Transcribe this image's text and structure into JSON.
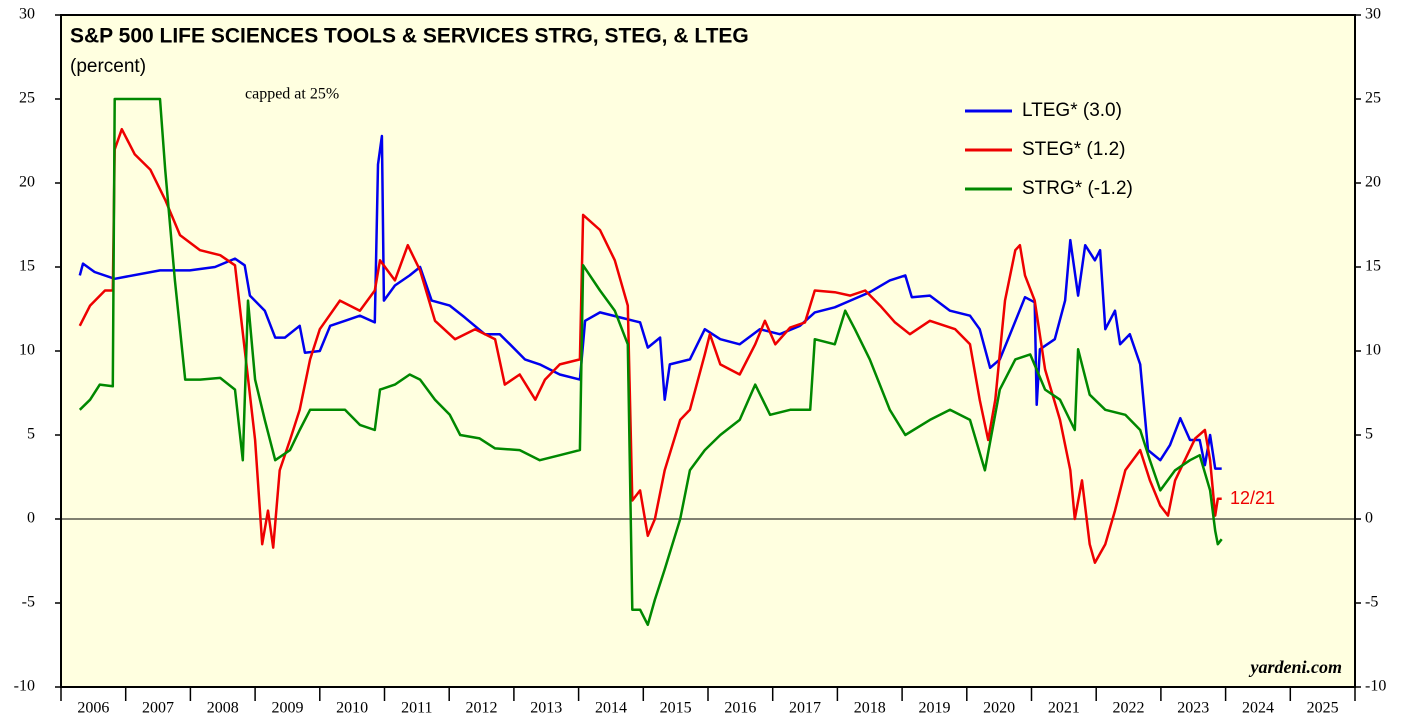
{
  "chart_data": {
    "type": "line",
    "title": "S&P 500 LIFE SCIENCES TOOLS & SERVICES STRG, STEG, & LTEG",
    "subtitle": "(percent)",
    "annotations": [
      "capped at 25%",
      "12/21",
      "yardeni.com"
    ],
    "xlim": [
      2006,
      2026
    ],
    "xticks": [
      2006,
      2007,
      2008,
      2009,
      2010,
      2011,
      2012,
      2013,
      2014,
      2015,
      2016,
      2017,
      2018,
      2019,
      2020,
      2021,
      2022,
      2023,
      2024,
      2025
    ],
    "ylim": [
      -10,
      30
    ],
    "yticks": [
      -10,
      -5,
      0,
      5,
      10,
      15,
      20,
      25,
      30
    ],
    "y2lim": [
      -10,
      30
    ],
    "y2ticks": [
      -10,
      -5,
      0,
      5,
      10,
      15,
      20,
      25,
      30
    ],
    "legend": "upper right",
    "background": "#ffffe0",
    "series": [
      {
        "name": "LTEG* (3.0)",
        "color": "#0000ee",
        "x": [
          2006.29,
          2006.34,
          2006.52,
          2006.83,
          2007.53,
          2007.99,
          2008.38,
          2008.69,
          2008.84,
          2008.92,
          2009.15,
          2009.31,
          2009.46,
          2009.69,
          2009.77,
          2010.0,
          2010.16,
          2010.39,
          2010.62,
          2010.85,
          2010.9,
          2010.96,
          2010.99,
          2011.16,
          2011.39,
          2011.55,
          2011.73,
          2012.01,
          2012.24,
          2012.55,
          2012.78,
          2012.94,
          2013.17,
          2013.4,
          2013.71,
          2014.02,
          2014.1,
          2014.33,
          2014.64,
          2014.95,
          2015.07,
          2015.26,
          2015.33,
          2015.41,
          2015.72,
          2015.95,
          2016.19,
          2016.49,
          2016.8,
          2017.11,
          2017.42,
          2017.65,
          2017.96,
          2018.2,
          2018.5,
          2018.81,
          2019.05,
          2019.15,
          2019.43,
          2019.74,
          2020.05,
          2020.2,
          2020.36,
          2020.51,
          2020.67,
          2020.9,
          2021.05,
          2021.08,
          2021.13,
          2021.36,
          2021.52,
          2021.6,
          2021.72,
          2021.83,
          2021.98,
          2022.06,
          2022.14,
          2022.29,
          2022.37,
          2022.52,
          2022.68,
          2022.8,
          2022.99,
          2023.14,
          2023.3,
          2023.45,
          2023.6,
          2023.68,
          2023.76,
          2023.84,
          2023.94
        ],
        "values": [
          14.5,
          15.2,
          14.7,
          14.3,
          14.8,
          14.8,
          15.0,
          15.5,
          15.1,
          13.3,
          12.4,
          10.8,
          10.8,
          11.5,
          9.9,
          10.0,
          11.5,
          11.8,
          12.1,
          11.7,
          21.1,
          22.8,
          13.0,
          13.9,
          14.5,
          15.0,
          13.0,
          12.7,
          12.0,
          11.0,
          11.0,
          10.4,
          9.5,
          9.2,
          8.6,
          8.3,
          11.8,
          12.3,
          12.0,
          11.7,
          10.2,
          10.8,
          7.1,
          9.2,
          9.5,
          11.3,
          10.7,
          10.4,
          11.3,
          11.0,
          11.5,
          12.3,
          12.6,
          13.0,
          13.5,
          14.2,
          14.5,
          13.2,
          13.3,
          12.4,
          12.1,
          11.3,
          9.0,
          9.5,
          11.0,
          13.2,
          12.9,
          6.8,
          10.1,
          10.7,
          13.0,
          16.6,
          13.3,
          16.3,
          15.4,
          16.0,
          11.3,
          12.4,
          10.4,
          11.0,
          9.2,
          4.1,
          3.5,
          4.4,
          6.0,
          4.7,
          4.7,
          3.2,
          5.0,
          3.0,
          3.0
        ]
      },
      {
        "name": "STEG* (1.2)",
        "color": "#ee0000",
        "x": [
          2006.29,
          2006.45,
          2006.68,
          2006.8,
          2006.83,
          2006.94,
          2007.14,
          2007.38,
          2007.61,
          2007.84,
          2008.15,
          2008.46,
          2008.69,
          2008.84,
          2009.0,
          2009.11,
          2009.2,
          2009.28,
          2009.38,
          2009.54,
          2009.69,
          2009.85,
          2010.0,
          2010.31,
          2010.62,
          2010.85,
          2010.93,
          2011.16,
          2011.36,
          2011.55,
          2011.78,
          2012.09,
          2012.4,
          2012.71,
          2012.86,
          2013.09,
          2013.33,
          2013.48,
          2013.71,
          2014.02,
          2014.07,
          2014.33,
          2014.56,
          2014.76,
          2014.83,
          2014.95,
          2015.07,
          2015.18,
          2015.33,
          2015.57,
          2015.72,
          2015.95,
          2016.03,
          2016.19,
          2016.49,
          2016.73,
          2016.88,
          2017.04,
          2017.27,
          2017.5,
          2017.65,
          2017.96,
          2018.2,
          2018.43,
          2018.66,
          2018.89,
          2019.12,
          2019.43,
          2019.82,
          2020.05,
          2020.2,
          2020.33,
          2020.44,
          2020.59,
          2020.75,
          2020.82,
          2020.9,
          2021.05,
          2021.21,
          2021.44,
          2021.6,
          2021.67,
          2021.78,
          2021.9,
          2021.98,
          2022.14,
          2022.29,
          2022.45,
          2022.68,
          2022.83,
          2022.99,
          2023.11,
          2023.22,
          2023.37,
          2023.53,
          2023.68,
          2023.76,
          2023.84,
          2023.88,
          2023.94
        ],
        "values": [
          11.5,
          12.7,
          13.6,
          13.6,
          22.0,
          23.2,
          21.7,
          20.8,
          19.0,
          16.9,
          16.0,
          15.7,
          15.1,
          10.1,
          4.7,
          -1.5,
          0.5,
          -1.7,
          2.9,
          4.7,
          6.5,
          9.5,
          11.3,
          13.0,
          12.4,
          13.6,
          15.4,
          14.2,
          16.3,
          14.8,
          11.8,
          10.7,
          11.3,
          10.7,
          8.0,
          8.6,
          7.1,
          8.3,
          9.2,
          9.5,
          18.1,
          17.2,
          15.4,
          12.7,
          1.1,
          1.7,
          -1.0,
          0,
          2.9,
          5.9,
          6.5,
          9.8,
          11.0,
          9.2,
          8.6,
          10.4,
          11.8,
          10.4,
          11.4,
          11.7,
          13.6,
          13.5,
          13.3,
          13.6,
          12.7,
          11.7,
          11.0,
          11.8,
          11.3,
          10.4,
          7.1,
          4.7,
          7.1,
          13.0,
          16.0,
          16.3,
          14.5,
          13.0,
          8.9,
          5.9,
          2.9,
          0,
          2.3,
          -1.5,
          -2.6,
          -1.5,
          0.5,
          2.9,
          4.1,
          2.3,
          0.8,
          0.2,
          2.3,
          3.5,
          4.8,
          5.3,
          3.5,
          0.2,
          1.2,
          1.2
        ]
      },
      {
        "name": "STRG* (-1.2)",
        "color": "#008800",
        "x": [
          2006.29,
          2006.45,
          2006.6,
          2006.8,
          2006.83,
          2007.53,
          2007.61,
          2007.76,
          2007.84,
          2007.92,
          2008.15,
          2008.46,
          2008.69,
          2008.81,
          2008.89,
          2009.0,
          2009.15,
          2009.31,
          2009.54,
          2009.69,
          2009.85,
          2010.16,
          2010.39,
          2010.62,
          2010.85,
          2010.93,
          2011.16,
          2011.39,
          2011.55,
          2011.78,
          2012.01,
          2012.17,
          2012.47,
          2012.71,
          2013.09,
          2013.4,
          2013.71,
          2014.02,
          2014.07,
          2014.33,
          2014.56,
          2014.76,
          2014.83,
          2014.95,
          2015.07,
          2015.18,
          2015.33,
          2015.57,
          2015.72,
          2015.95,
          2016.19,
          2016.49,
          2016.73,
          2016.96,
          2017.27,
          2017.58,
          2017.65,
          2017.96,
          2018.12,
          2018.27,
          2018.5,
          2018.81,
          2019.05,
          2019.43,
          2019.74,
          2020.05,
          2020.28,
          2020.51,
          2020.75,
          2020.98,
          2021.21,
          2021.44,
          2021.67,
          2021.72,
          2021.9,
          2022.14,
          2022.45,
          2022.68,
          2022.83,
          2022.99,
          2023.22,
          2023.45,
          2023.6,
          2023.76,
          2023.84,
          2023.88,
          2023.94
        ],
        "values": [
          6.5,
          7.1,
          8.0,
          7.9,
          25,
          25,
          20.8,
          14.2,
          11.3,
          8.3,
          8.3,
          8.4,
          7.7,
          3.5,
          13.0,
          8.3,
          5.9,
          3.5,
          4.1,
          5.3,
          6.5,
          6.5,
          6.5,
          5.6,
          5.3,
          7.7,
          8.0,
          8.6,
          8.3,
          7.1,
          6.2,
          5.0,
          4.8,
          4.2,
          4.1,
          3.5,
          3.8,
          4.1,
          15.1,
          13.6,
          12.4,
          10.4,
          -5.4,
          -5.4,
          -6.3,
          -4.8,
          -3.0,
          0,
          2.9,
          4.1,
          5.0,
          5.9,
          8.0,
          6.2,
          6.5,
          6.5,
          10.7,
          10.4,
          12.4,
          11.3,
          9.5,
          6.5,
          5.0,
          5.9,
          6.5,
          5.9,
          2.9,
          7.7,
          9.5,
          9.8,
          7.7,
          7.1,
          5.3,
          10.1,
          7.4,
          6.5,
          6.2,
          5.3,
          3.5,
          1.7,
          2.9,
          3.5,
          3.8,
          1.7,
          -0.7,
          -1.5,
          -1.2
        ]
      }
    ]
  }
}
